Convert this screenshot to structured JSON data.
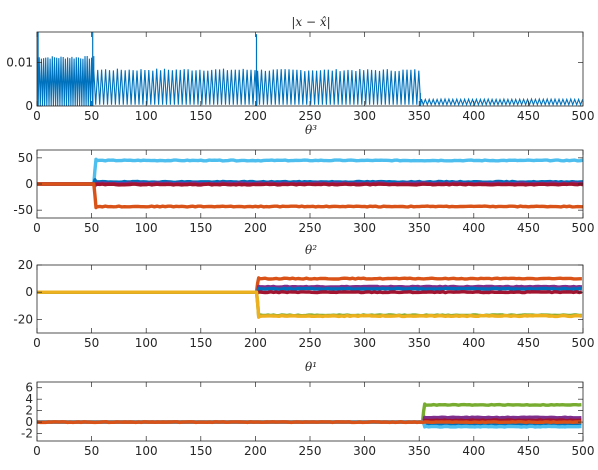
{
  "chart_data": [
    {
      "type": "line",
      "title": "|x − x̂|",
      "xlim": [
        0,
        500
      ],
      "ylim": [
        0,
        0.017
      ],
      "xticks": [
        0,
        50,
        100,
        150,
        200,
        250,
        300,
        350,
        400,
        450,
        500
      ],
      "yticks": [
        0,
        0.01
      ],
      "ytick_labels": [
        "0",
        "0.01"
      ],
      "grid": false,
      "series": [
        {
          "color": "#0072bd",
          "pattern": "oscillating error",
          "segments": [
            {
              "from": 0,
              "to": 52,
              "low": 0.0,
              "high": 0.0115,
              "period": 2.0
            },
            {
              "from": 52,
              "to": 202,
              "low": 0.0003,
              "high": 0.0086,
              "period": 3.6
            },
            {
              "from": 202,
              "to": 352,
              "low": 0.0003,
              "high": 0.0085,
              "period": 3.6
            },
            {
              "from": 352,
              "to": 500,
              "low": 0.0003,
              "high": 0.0016,
              "period": 3.6
            }
          ],
          "spikes": [
            [
              1,
              0.017
            ],
            [
              51,
              0.017
            ],
            [
              201,
              0.0165
            ],
            [
              351,
              0.003
            ]
          ]
        }
      ]
    },
    {
      "type": "line",
      "title": "θ³",
      "xlim": [
        0,
        500
      ],
      "ylim": [
        -65,
        65
      ],
      "xticks": [
        0,
        50,
        100,
        150,
        200,
        250,
        300,
        350,
        400,
        450,
        500
      ],
      "yticks": [
        -50,
        0,
        50
      ],
      "ytick_labels": [
        "-50",
        "0",
        "50"
      ],
      "grid": false,
      "series": [
        {
          "color": "#4dbeee",
          "start": 52,
          "value": 45
        },
        {
          "color": "#0072bd",
          "start": 52,
          "value": 4
        },
        {
          "color": "#7e2f8e",
          "start": 52,
          "value": 1
        },
        {
          "color": "#a2142f",
          "start": 52,
          "value": -1
        },
        {
          "color": "#d95319",
          "start": 52,
          "value": -43
        }
      ]
    },
    {
      "type": "line",
      "title": "θ²",
      "xlim": [
        0,
        500
      ],
      "ylim": [
        -30,
        20
      ],
      "xticks": [
        0,
        50,
        100,
        150,
        200,
        250,
        300,
        350,
        400,
        450,
        500
      ],
      "yticks": [
        -20,
        0,
        20
      ],
      "ytick_labels": [
        "-20",
        "0",
        "20"
      ],
      "grid": false,
      "series": [
        {
          "color": "#d95319",
          "start": 201,
          "value": 10
        },
        {
          "color": "#7e2f8e",
          "start": 201,
          "value": 4
        },
        {
          "color": "#0072bd",
          "start": 201,
          "value": 2.5
        },
        {
          "color": "#a2142f",
          "start": 201,
          "value": 0
        },
        {
          "color": "#77ac30",
          "start": 201,
          "value": -17
        },
        {
          "color": "#edb120",
          "start": 201,
          "value": -17.5
        }
      ]
    },
    {
      "type": "line",
      "title": "θ¹",
      "xlim": [
        0,
        500
      ],
      "ylim": [
        -3.3,
        7
      ],
      "xticks": [
        0,
        50,
        100,
        150,
        200,
        250,
        300,
        350,
        400,
        450,
        500
      ],
      "yticks": [
        -2,
        0,
        2,
        4,
        6
      ],
      "ytick_labels": [
        "-2",
        "0",
        "2",
        "4",
        "6"
      ],
      "grid": false,
      "series": [
        {
          "color": "#77ac30",
          "start": 353,
          "value": 3.0
        },
        {
          "color": "#7e2f8e",
          "start": 353,
          "value": 0.8
        },
        {
          "color": "#a2142f",
          "start": 353,
          "value": 0.3
        },
        {
          "color": "#edb120",
          "start": 353,
          "value": -0.2
        },
        {
          "color": "#0072bd",
          "start": 353,
          "value": -0.5
        },
        {
          "color": "#4dbeee",
          "start": 353,
          "value": -0.8
        },
        {
          "color": "#d95319",
          "start": 0,
          "value": 0
        }
      ]
    }
  ]
}
